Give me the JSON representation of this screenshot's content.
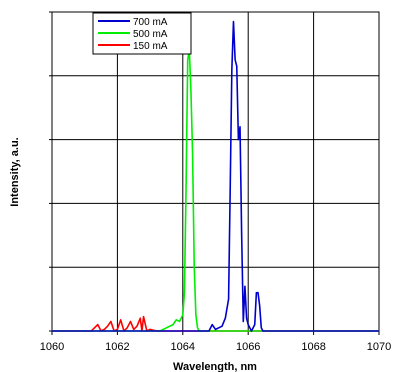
{
  "chart_data": {
    "type": "line",
    "title": "",
    "xlabel": "Wavelength, nm",
    "ylabel": "Intensity, a.u.",
    "xlim": [
      1060,
      1070
    ],
    "ylim": [
      0,
      1.0
    ],
    "x_ticks": [
      1060,
      1062,
      1064,
      1066,
      1068,
      1070
    ],
    "x_tick_labels": [
      "1060",
      "1062",
      "1064",
      "1066",
      "1068",
      "1070"
    ],
    "y_gridlines": 5,
    "grid": true,
    "legend_position": "top-left",
    "series": [
      {
        "name": "700 mA",
        "color": "#0000cc",
        "x": [
          1060,
          1064.8,
          1064.9,
          1065.0,
          1065.1,
          1065.2,
          1065.3,
          1065.4,
          1065.45,
          1065.5,
          1065.55,
          1065.6,
          1065.65,
          1065.7,
          1065.75,
          1065.8,
          1065.85,
          1065.9,
          1065.95,
          1066.0,
          1066.05,
          1066.1,
          1066.2,
          1066.25,
          1066.3,
          1066.35,
          1066.4,
          1066.45,
          1070
        ],
        "y": [
          0,
          0,
          0.02,
          0.005,
          0.01,
          0.015,
          0.04,
          0.1,
          0.45,
          0.82,
          0.97,
          0.85,
          0.83,
          0.6,
          0.64,
          0.3,
          0.03,
          0.14,
          0.04,
          0.02,
          0.01,
          0.0,
          0.02,
          0.12,
          0.12,
          0.08,
          0.01,
          0,
          0
        ]
      },
      {
        "name": "500 mA",
        "color": "#00ee00",
        "x": [
          1060,
          1063.3,
          1063.5,
          1063.7,
          1063.8,
          1063.9,
          1064.0,
          1064.05,
          1064.1,
          1064.15,
          1064.2,
          1064.25,
          1064.3,
          1064.35,
          1064.4,
          1064.45,
          1064.5,
          1070
        ],
        "y": [
          0,
          0,
          0.01,
          0.02,
          0.035,
          0.03,
          0.05,
          0.12,
          0.45,
          0.85,
          0.88,
          0.75,
          0.55,
          0.2,
          0.05,
          0.01,
          0,
          0
        ]
      },
      {
        "name": "150 mA",
        "color": "#ff0000",
        "x": [
          1060,
          1061.2,
          1061.3,
          1061.4,
          1061.5,
          1061.6,
          1061.7,
          1061.8,
          1061.9,
          1062.0,
          1062.1,
          1062.2,
          1062.3,
          1062.4,
          1062.5,
          1062.6,
          1062.7,
          1062.75,
          1062.8,
          1062.9,
          1063.0,
          1063.2,
          1070
        ],
        "y": [
          0,
          0,
          0.01,
          0.02,
          0.0,
          0.005,
          0.015,
          0.03,
          0.0,
          0.005,
          0.035,
          0.0,
          0.01,
          0.03,
          0.005,
          0.015,
          0.04,
          0.0,
          0.045,
          0.0,
          0.005,
          0,
          0
        ]
      }
    ]
  }
}
